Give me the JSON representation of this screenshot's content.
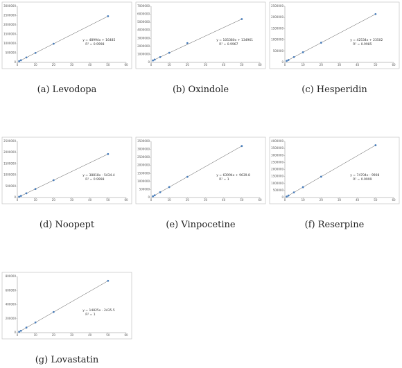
{
  "chart_data": [
    {
      "type": "scatter",
      "caption": "(a) Levodopa",
      "x": [
        1,
        2,
        5,
        10,
        20,
        50
      ],
      "values": [
        65000,
        115000,
        262000,
        506000,
        996000,
        2466000
      ],
      "color": "#4a7ebb",
      "xlim": [
        0,
        60
      ],
      "xticks": [
        0,
        10,
        20,
        30,
        40,
        50,
        60
      ],
      "ylim": [
        0,
        3000000
      ],
      "yticks": [
        0,
        500000,
        1000000,
        1500000,
        2000000,
        2500000,
        3000000
      ],
      "equation": "y = 48994x + 16485",
      "r2": "R² = 0.9998"
    },
    {
      "type": "scatter",
      "caption": "(b) Oxindole",
      "x": [
        1,
        2,
        5,
        10,
        20,
        50
      ],
      "values": [
        240000,
        350000,
        660000,
        1200000,
        2400000,
        5400000
      ],
      "color": "#4a7ebb",
      "xlim": [
        0,
        60
      ],
      "xticks": [
        0,
        10,
        20,
        30,
        40,
        50,
        60
      ],
      "ylim": [
        0,
        7000000
      ],
      "yticks": [
        0,
        1000000,
        2000000,
        3000000,
        4000000,
        5000000,
        6000000,
        7000000
      ],
      "equation": "y = 105380x + 134961",
      "r2": "R² = 0.9967"
    },
    {
      "type": "scatter",
      "caption": "(c) Hesperidin",
      "x": [
        1,
        2,
        5,
        10,
        20,
        50
      ],
      "values": [
        66000,
        109000,
        236000,
        449000,
        874000,
        2150000
      ],
      "color": "#4a7ebb",
      "xlim": [
        0,
        60
      ],
      "xticks": [
        0,
        10,
        20,
        30,
        40,
        50,
        60
      ],
      "ylim": [
        0,
        2500000
      ],
      "yticks": [
        0,
        500000,
        1000000,
        1500000,
        2000000,
        2500000
      ],
      "equation": "y = 42534x + 23502",
      "r2": "R² = 0.9985"
    },
    {
      "type": "scatter",
      "caption": "(d) Noopept",
      "x": [
        1,
        2,
        5,
        10,
        20,
        50
      ],
      "values": [
        33000,
        72000,
        189000,
        383000,
        771000,
        1935000
      ],
      "color": "#4a7ebb",
      "xlim": [
        0,
        60
      ],
      "xticks": [
        0,
        10,
        20,
        30,
        40,
        50,
        60
      ],
      "ylim": [
        0,
        2500000
      ],
      "yticks": [
        0,
        500000,
        1000000,
        1500000,
        2000000,
        2500000
      ],
      "equation": "y = 38818x - 5434.4",
      "r2": "R² = 0.9998"
    },
    {
      "type": "scatter",
      "caption": "(e) Vinpocetine",
      "x": [
        1,
        2,
        5,
        10,
        20,
        50
      ],
      "values": [
        74000,
        138000,
        330000,
        650000,
        1290000,
        3210000
      ],
      "color": "#4a7ebb",
      "xlim": [
        0,
        60
      ],
      "xticks": [
        0,
        10,
        20,
        30,
        40,
        50,
        60
      ],
      "ylim": [
        0,
        3500000
      ],
      "yticks": [
        0,
        500000,
        1000000,
        1500000,
        2000000,
        2500000,
        3000000,
        3500000
      ],
      "equation": "y = 63994x + 9639.8",
      "r2": "R² = 1"
    },
    {
      "type": "scatter",
      "caption": "(f) Reserpine",
      "x": [
        1,
        2,
        5,
        10,
        20,
        50
      ],
      "values": [
        65000,
        140000,
        364000,
        737000,
        1484000,
        3725000
      ],
      "color": "#4a7ebb",
      "xlim": [
        0,
        60
      ],
      "xticks": [
        0,
        10,
        20,
        30,
        40,
        50,
        60
      ],
      "ylim": [
        0,
        4000000
      ],
      "yticks": [
        0,
        500000,
        1000000,
        1500000,
        2000000,
        2500000,
        3000000,
        3500000,
        4000000
      ],
      "equation": "y = 74704x - 9908",
      "r2": "R² = 0.9999"
    },
    {
      "type": "scatter",
      "caption": "(g) Lovastatin",
      "x": [
        1,
        2,
        5,
        10,
        20,
        50
      ],
      "values": [
        12000,
        27000,
        72000,
        146000,
        294000,
        738000
      ],
      "color": "#4a7ebb",
      "xlim": [
        0,
        60
      ],
      "xticks": [
        0,
        10,
        20,
        30,
        40,
        50,
        60
      ],
      "ylim": [
        0,
        800000
      ],
      "yticks": [
        0,
        200000,
        400000,
        600000,
        800000
      ],
      "equation": "y = 14825x - 2435.5",
      "r2": "R² = 1"
    }
  ]
}
